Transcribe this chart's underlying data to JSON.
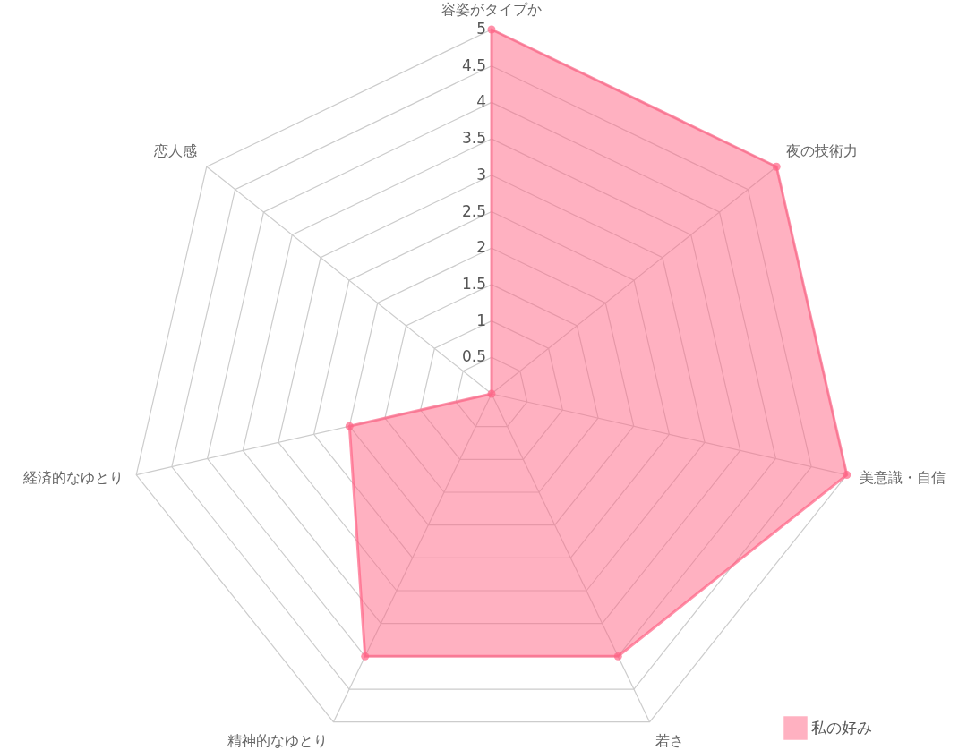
{
  "chart_data": {
    "type": "radar",
    "categories": [
      "容姿がタイプか",
      "夜の技術力",
      "美意識・自信",
      "若さ",
      "精神的なゆとり",
      "経済的なゆとり",
      "恋人感"
    ],
    "series": [
      {
        "name": "私の好み",
        "color": "#ff6384",
        "values": [
          5,
          5,
          5,
          4,
          4,
          2,
          0
        ]
      }
    ],
    "ylim": [
      0,
      5
    ],
    "yticks": [
      0.5,
      1,
      1.5,
      2,
      2.5,
      3,
      3.5,
      4,
      4.5,
      5
    ],
    "grid": true,
    "legend": "bottom right",
    "marker": "circle"
  }
}
